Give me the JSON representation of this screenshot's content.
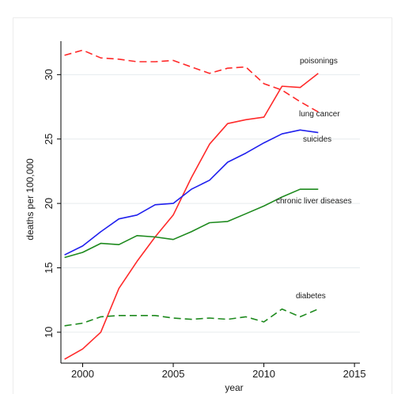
{
  "chart_data": {
    "type": "line",
    "xlabel": "year",
    "ylabel": "deaths per 100,000",
    "xlim": [
      1998.8,
      2015.3
    ],
    "ylim": [
      7.6,
      32.6
    ],
    "xticks": [
      2000,
      2005,
      2010,
      2015
    ],
    "yticks": [
      10,
      15,
      20,
      25,
      30
    ],
    "grid": "horizontal",
    "x": [
      1999,
      2000,
      2001,
      2002,
      2003,
      2004,
      2005,
      2006,
      2007,
      2008,
      2009,
      2010,
      2011,
      2012,
      2013
    ],
    "series": [
      {
        "name": "poisonings",
        "color": "#ff2a2a",
        "dash": "solid",
        "values": [
          7.9,
          8.7,
          10.0,
          13.4,
          15.5,
          17.4,
          19.1,
          22.0,
          24.6,
          26.2,
          26.5,
          26.7,
          29.1,
          29.0,
          30.1
        ]
      },
      {
        "name": "lung cancer",
        "color": "#ff2a2a",
        "dash": "dashed",
        "values": [
          31.5,
          31.9,
          31.3,
          31.2,
          31.0,
          31.0,
          31.1,
          30.6,
          30.1,
          30.5,
          30.6,
          29.3,
          28.8,
          27.9,
          27.1
        ]
      },
      {
        "name": "suicides",
        "color": "#2020ee",
        "dash": "solid",
        "values": [
          16.0,
          16.7,
          17.8,
          18.8,
          19.1,
          19.9,
          20.0,
          21.1,
          21.8,
          23.2,
          23.9,
          24.7,
          25.4,
          25.7,
          25.5
        ]
      },
      {
        "name": "chronic liver diseases",
        "color": "#1e8a1e",
        "dash": "solid",
        "values": [
          15.8,
          16.2,
          16.9,
          16.8,
          17.5,
          17.4,
          17.2,
          17.8,
          18.5,
          18.6,
          19.2,
          19.8,
          20.5,
          21.1,
          21.1
        ]
      },
      {
        "name": "diabetes",
        "color": "#1e8a1e",
        "dash": "dashed",
        "values": [
          10.5,
          10.7,
          11.2,
          11.3,
          11.3,
          11.3,
          11.1,
          11.0,
          11.1,
          11.0,
          11.2,
          10.8,
          11.8,
          11.2,
          11.8
        ]
      }
    ]
  }
}
